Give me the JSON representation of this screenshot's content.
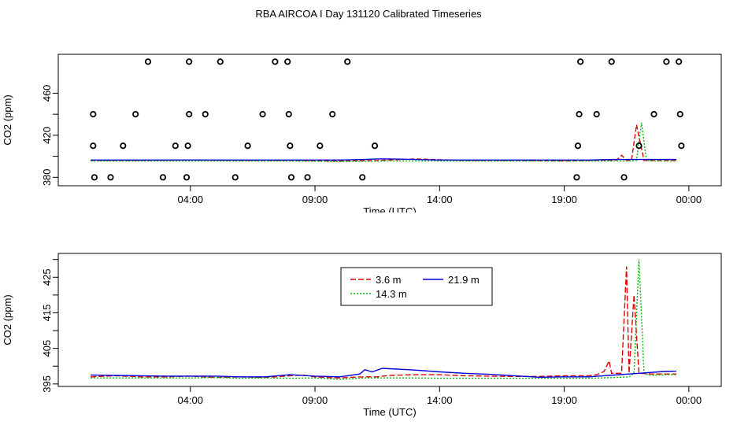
{
  "title": "RBA AIRCOA I  Day 131120  Calibrated Timeseries",
  "colors": {
    "h3_6": "#dd0000",
    "h14_3": "#00bb00",
    "h21_9": "#0000dd",
    "points": "#000000"
  },
  "chart_data": [
    {
      "type": "scatter",
      "xlabel": "Time (UTC)",
      "ylabel": "CO2 (ppm)",
      "xlim": [
        -1.3,
        25.3
      ],
      "ylim": [
        372,
        497
      ],
      "x_ticks": [
        4,
        9,
        14,
        19,
        24
      ],
      "x_tick_labels": [
        "04:00",
        "09:00",
        "14:00",
        "19:00",
        "00:00"
      ],
      "y_ticks": [
        380,
        420,
        460
      ],
      "y_tick_labels": [
        "380",
        "420",
        "460"
      ],
      "y_minor_ticks": [
        400,
        440
      ],
      "y_minor_labels": [
        "",
        ""
      ],
      "points": [
        [
          0.1,
          440
        ],
        [
          0.1,
          410
        ],
        [
          0.15,
          380
        ],
        [
          0.8,
          380
        ],
        [
          1.3,
          410
        ],
        [
          1.8,
          440
        ],
        [
          2.3,
          490
        ],
        [
          2.9,
          380
        ],
        [
          3.4,
          410
        ],
        [
          3.95,
          490
        ],
        [
          3.85,
          380
        ],
        [
          3.9,
          410
        ],
        [
          3.95,
          440
        ],
        [
          4.6,
          440
        ],
        [
          5.2,
          490
        ],
        [
          5.8,
          380
        ],
        [
          6.3,
          410
        ],
        [
          6.9,
          440
        ],
        [
          7.4,
          490
        ],
        [
          7.9,
          490
        ],
        [
          7.95,
          440
        ],
        [
          8.0,
          410
        ],
        [
          8.05,
          380
        ],
        [
          8.7,
          380
        ],
        [
          9.2,
          410
        ],
        [
          9.7,
          440
        ],
        [
          10.3,
          490
        ],
        [
          10.9,
          380
        ],
        [
          11.4,
          410
        ],
        [
          19.5,
          380
        ],
        [
          19.55,
          410
        ],
        [
          19.6,
          440
        ],
        [
          19.65,
          490
        ],
        [
          20.3,
          440
        ],
        [
          20.9,
          490
        ],
        [
          21.4,
          380
        ],
        [
          22.0,
          410
        ],
        [
          22.6,
          440
        ],
        [
          23.1,
          490
        ],
        [
          23.6,
          490
        ],
        [
          23.65,
          440
        ],
        [
          23.7,
          410
        ]
      ],
      "series": [
        {
          "name": "3.6 m",
          "color": "#dd0000",
          "dash": "6,3",
          "x": [
            0,
            2,
            4,
            6,
            8,
            10,
            11.5,
            13,
            15,
            17,
            19,
            20,
            21.1,
            21.3,
            21.5,
            21.7,
            21.9,
            22.2,
            22.5,
            23.5
          ],
          "y": [
            396,
            396,
            396.5,
            396,
            396,
            395.5,
            396,
            397.5,
            396,
            396,
            395.5,
            396,
            396.5,
            401,
            396,
            396,
            430,
            396,
            396,
            396
          ]
        },
        {
          "name": "14.3 m",
          "color": "#00bb00",
          "dash": "2,2",
          "x": [
            0,
            2,
            4,
            6,
            8,
            10,
            12,
            14,
            16,
            18,
            20,
            21.6,
            21.9,
            22.1,
            22.3,
            22.5,
            23.5
          ],
          "y": [
            395.5,
            395.5,
            395.5,
            395.5,
            395.5,
            395,
            395.5,
            395.5,
            395.5,
            395.5,
            395.5,
            395.5,
            396,
            432,
            396,
            395.5,
            395.5
          ]
        },
        {
          "name": "21.9 m",
          "color": "#0000dd",
          "dash": "",
          "x": [
            0,
            2,
            4,
            6,
            8,
            10,
            11,
            11.5,
            12,
            13,
            14,
            16,
            18,
            19,
            20,
            21,
            22,
            23,
            23.5
          ],
          "y": [
            396.5,
            396.5,
            396.5,
            396.5,
            396.5,
            396.5,
            397,
            397.5,
            397.5,
            397,
            396.5,
            396.5,
            396.5,
            396.5,
            396.5,
            397,
            397,
            397,
            397
          ]
        }
      ]
    },
    {
      "type": "line",
      "xlabel": "Time (UTC)",
      "ylabel": "CO2 (ppm)",
      "xlim": [
        -1.3,
        25.3
      ],
      "ylim": [
        394.3,
        431.7
      ],
      "x_ticks": [
        4,
        9,
        14,
        19,
        24
      ],
      "x_tick_labels": [
        "04:00",
        "09:00",
        "14:00",
        "19:00",
        "00:00"
      ],
      "y_ticks": [
        395,
        405,
        415,
        425
      ],
      "y_tick_labels": [
        "395",
        "405",
        "415",
        "425"
      ],
      "y_minor_ticks": [
        400,
        410,
        420,
        430
      ],
      "y_minor_labels": [
        "",
        "",
        "",
        ""
      ],
      "legend": {
        "position": "top-center",
        "entries": [
          "3.6 m",
          "21.9 m",
          "14.3 m"
        ]
      },
      "series": [
        {
          "name": "3.6 m",
          "color": "#dd0000",
          "dash": "7,3",
          "x": [
            0,
            1,
            2,
            3,
            4,
            5,
            6,
            7,
            8,
            8.5,
            9,
            9.5,
            10,
            10.5,
            11,
            11.5,
            12,
            13,
            14,
            15,
            16,
            17,
            18,
            19,
            20,
            20.3,
            20.6,
            20.8,
            20.9,
            21.1,
            21.3,
            21.5,
            21.6,
            21.8,
            22,
            22.5,
            23,
            23.5
          ],
          "y": [
            397,
            397.3,
            397,
            397,
            397.2,
            396.8,
            397,
            396.8,
            397.3,
            397.5,
            397,
            396.8,
            396.7,
            396.9,
            397,
            397,
            397.4,
            397.6,
            397.6,
            397.3,
            397.2,
            397.1,
            397.1,
            397.3,
            397.3,
            397.6,
            398.5,
            401.5,
            398,
            398,
            398,
            428,
            398,
            420,
            398,
            397.8,
            397.8,
            397.8
          ]
        },
        {
          "name": "14.3 m",
          "color": "#00bb00",
          "dash": "2,2",
          "x": [
            0,
            1,
            2,
            3,
            4,
            5,
            6,
            7,
            8,
            9,
            10,
            11,
            12,
            13,
            14,
            15,
            16,
            17,
            18,
            19,
            20,
            21,
            21.6,
            21.8,
            22.0,
            22.2,
            22.4,
            22.6,
            23,
            23.5
          ],
          "y": [
            396.7,
            396.7,
            396.7,
            396.7,
            396.7,
            396.8,
            396.6,
            396.7,
            396.6,
            396.7,
            396.3,
            396.7,
            396.7,
            396.7,
            396.6,
            396.6,
            396.6,
            396.6,
            396.6,
            396.6,
            396.6,
            396.8,
            397,
            398,
            430,
            398,
            397.5,
            397.4,
            397.6,
            397.6
          ]
        },
        {
          "name": "21.9 m",
          "color": "#0000dd",
          "dash": "",
          "x": [
            0,
            1,
            2,
            3,
            4,
            5,
            6,
            7,
            8,
            9,
            10,
            10.8,
            11,
            11.3,
            11.7,
            13,
            14,
            15,
            16,
            17,
            18,
            19,
            20,
            21,
            22,
            23,
            23.5
          ],
          "y": [
            397.5,
            397.4,
            397.3,
            397.2,
            397.2,
            397.2,
            397,
            397,
            397.6,
            397.2,
            397,
            397.8,
            399,
            398.4,
            399.4,
            398.9,
            398.4,
            398,
            397.7,
            397.3,
            396.9,
            397,
            397,
            397.5,
            398,
            398.5,
            398.6
          ]
        }
      ]
    }
  ]
}
